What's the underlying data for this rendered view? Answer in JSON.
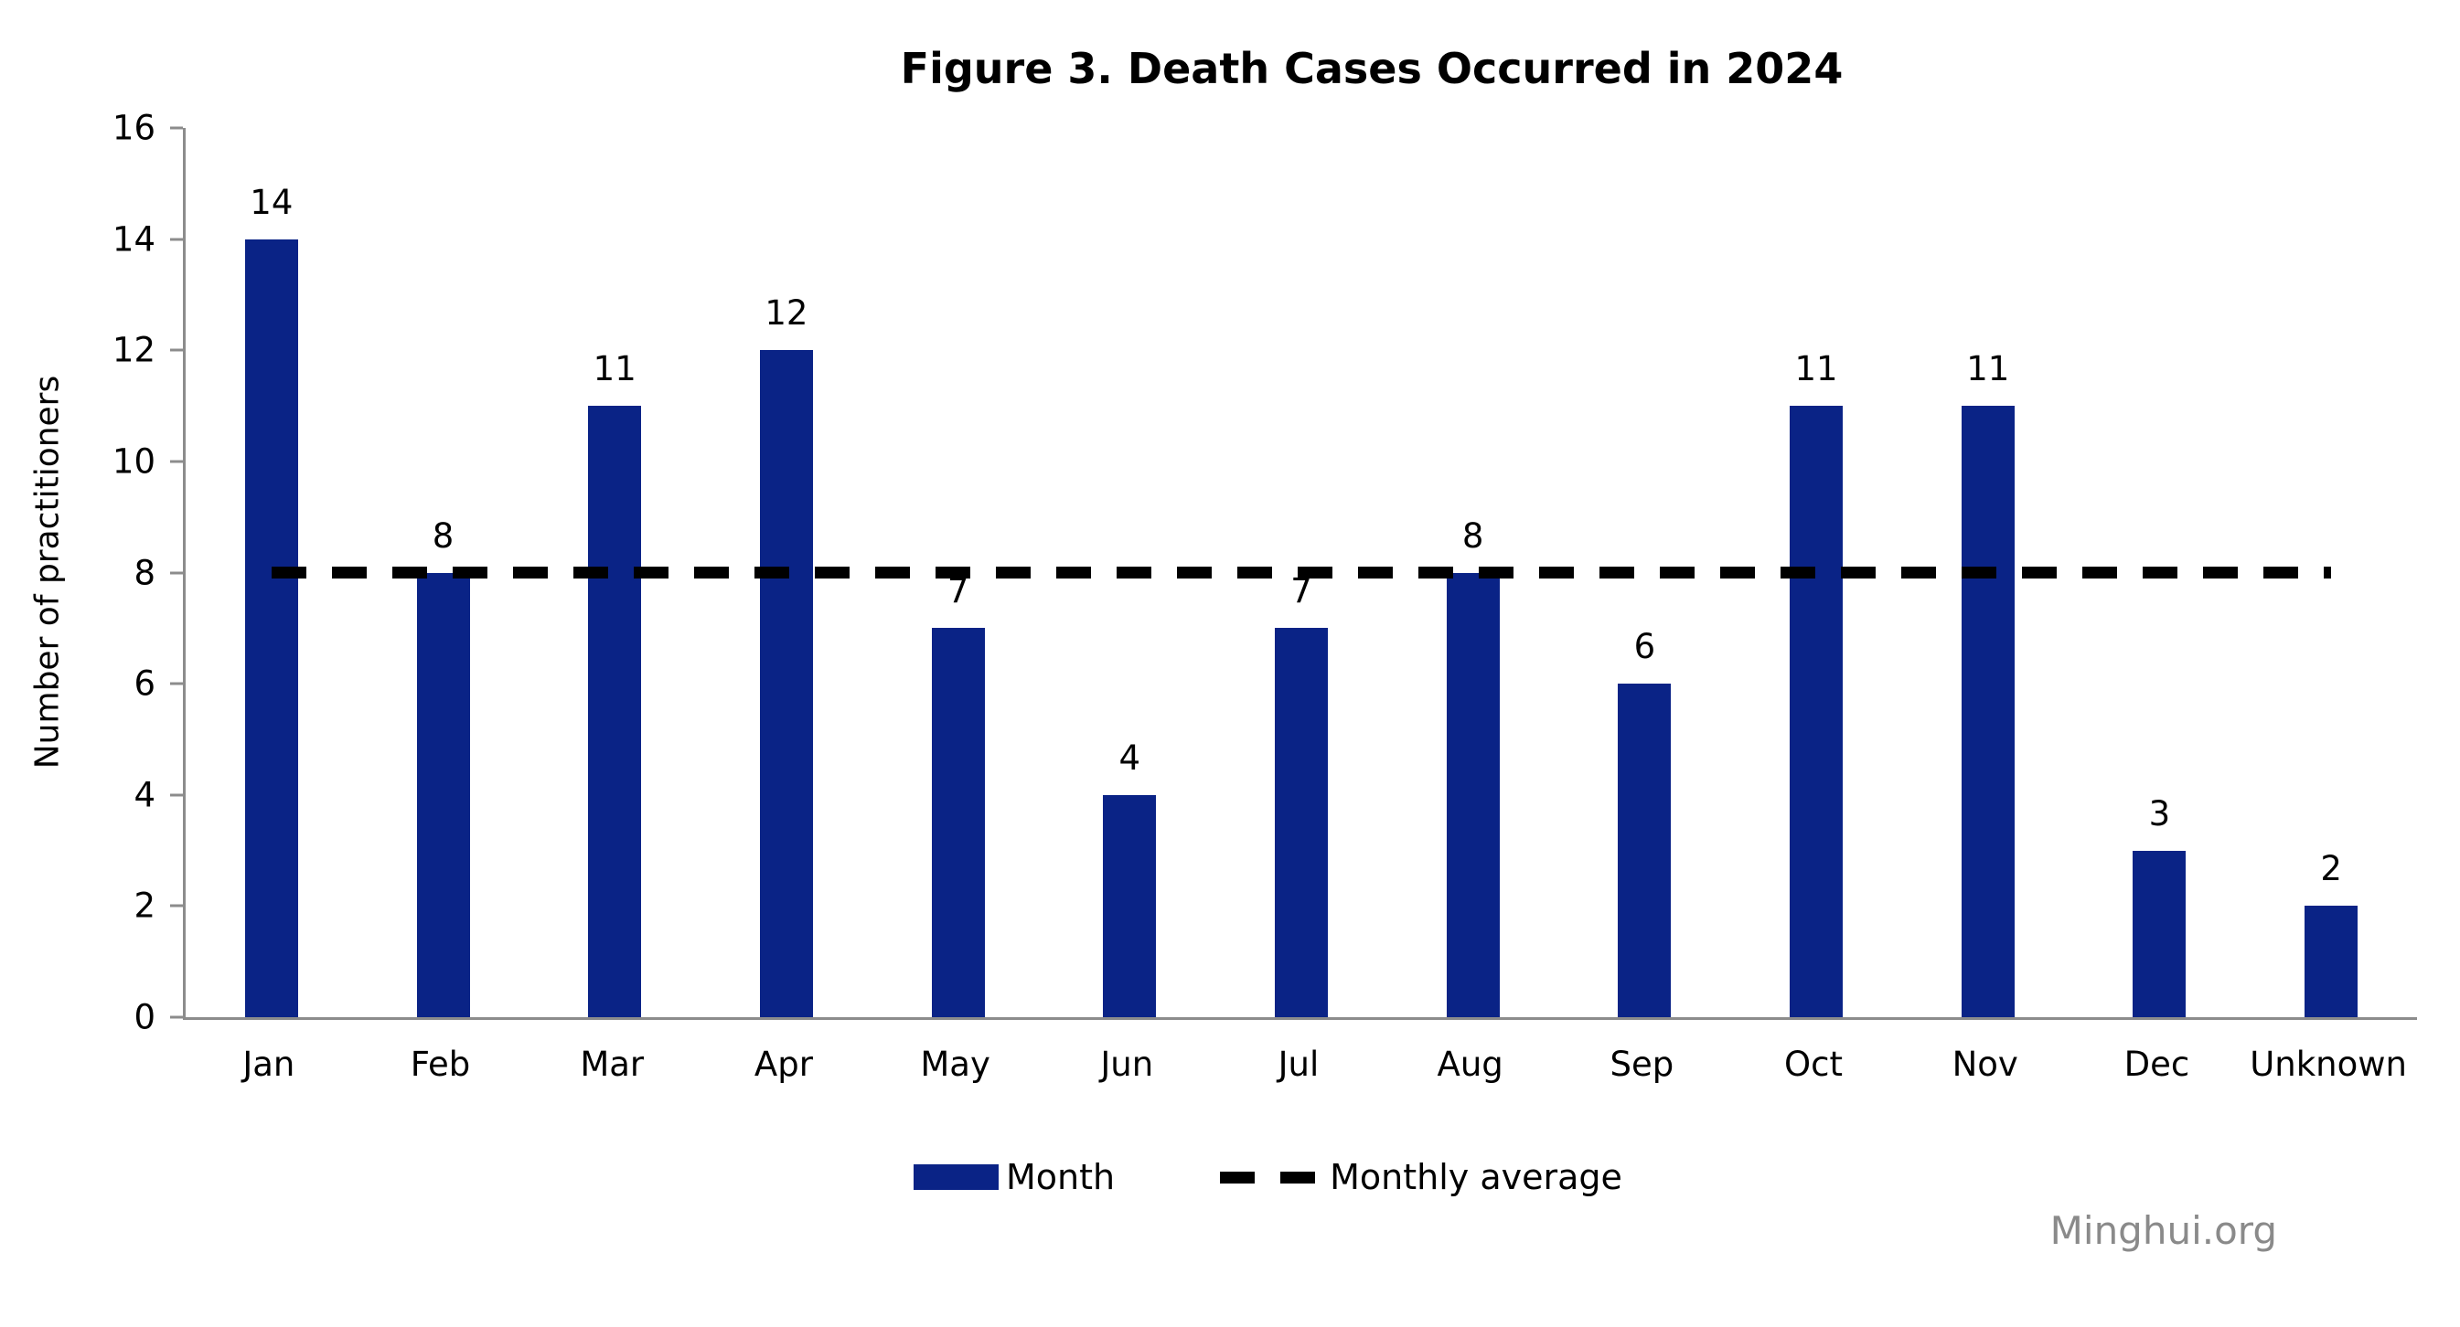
{
  "title": "Figure 3. Death Cases Occurred in 2024",
  "watermark": "Minghui.org",
  "colors": {
    "bar": "#0a2386",
    "axis": "#8c8c8c",
    "average_line": "#000000",
    "watermark_text": "#8a8a8a"
  },
  "legend": {
    "month_label": "Month",
    "average_label": "Monthly average"
  },
  "chart_data": {
    "type": "bar",
    "title": "Figure 3. Death Cases Occurred in 2024",
    "categories": [
      "Jan",
      "Feb",
      "Mar",
      "Apr",
      "May",
      "Jun",
      "Jul",
      "Aug",
      "Sep",
      "Oct",
      "Nov",
      "Dec",
      "Unknown"
    ],
    "values": [
      14,
      8,
      11,
      12,
      7,
      4,
      7,
      8,
      6,
      11,
      11,
      3,
      2
    ],
    "series": [
      {
        "name": "Month",
        "values": [
          14,
          8,
          11,
          12,
          7,
          4,
          7,
          8,
          6,
          11,
          11,
          3,
          2
        ]
      }
    ],
    "average_line": {
      "name": "Monthly average",
      "value": 8,
      "style": "dashed"
    },
    "xlabel": "",
    "ylabel": "Number of practitioners",
    "ylim": [
      0,
      16
    ],
    "yticks": [
      0,
      2,
      4,
      6,
      8,
      10,
      12,
      14,
      16
    ],
    "grid": false,
    "legend_position": "bottom",
    "data_labels": true
  }
}
